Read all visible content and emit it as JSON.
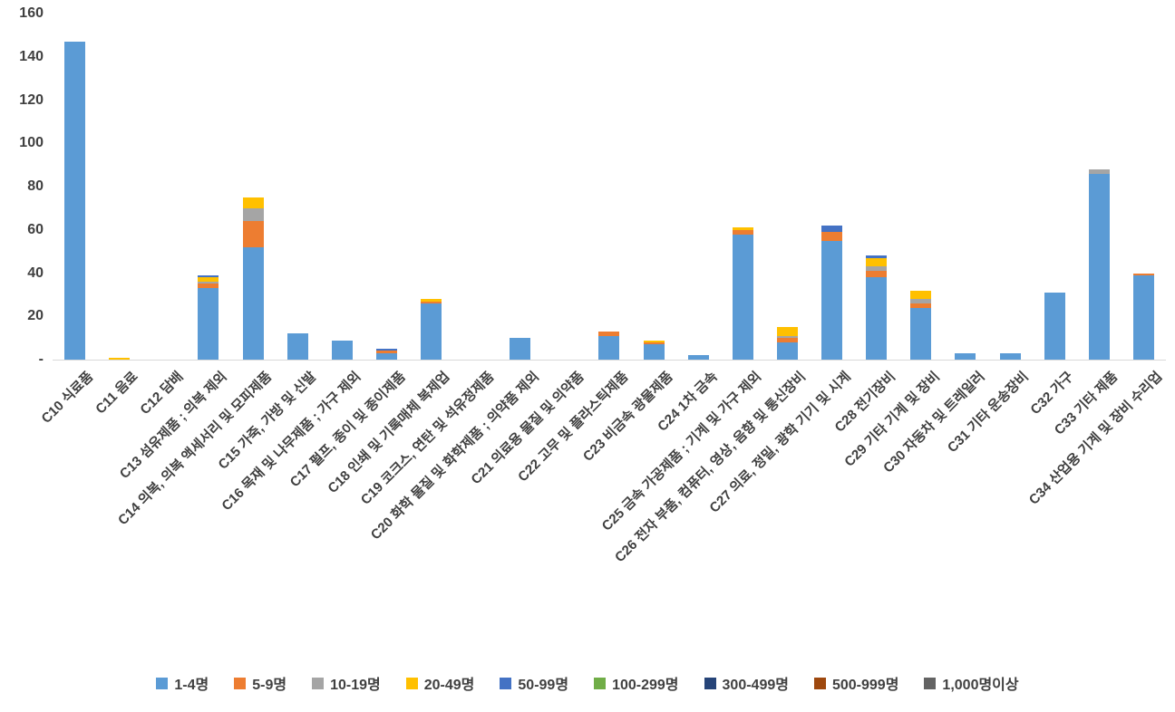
{
  "chart_data": {
    "type": "bar",
    "stacked": true,
    "title": "",
    "xlabel": "",
    "ylabel": "",
    "ylim": [
      0,
      160
    ],
    "grid": false,
    "legend_position": "bottom",
    "y_ticks": [
      {
        "value": 160,
        "label": "160"
      },
      {
        "value": 140,
        "label": "140"
      },
      {
        "value": 120,
        "label": "120"
      },
      {
        "value": 100,
        "label": "100"
      },
      {
        "value": 80,
        "label": "80"
      },
      {
        "value": 60,
        "label": "60"
      },
      {
        "value": 40,
        "label": "40"
      },
      {
        "value": 20,
        "label": "20"
      },
      {
        "value": 0,
        "label": "-"
      }
    ],
    "categories": [
      "C10 식료품",
      "C11 음료",
      "C12 담배",
      "C13 섬유제품 ; 의복 제외",
      "C14 의복, 의복 액세서리 및 모피제품",
      "C15 가죽, 가방 및 신발",
      "C16 목재 및 나무제품 ; 가구 제외",
      "C17 펄프, 종이 및 종이제품",
      "C18 인쇄 및 기록매체 복제업",
      "C19 코크스, 연탄 및 석유정제품",
      "C20 화학 물질 및 화학제품 ; 의약품 제외",
      "C21 의료용 물질 및 의약품",
      "C22 고무 및 플라스틱제품",
      "C23 비금속 광물제품",
      "C24 1차 금속",
      "C25 금속 가공제품 ; 기계 및 가구 제외",
      "C26 전자 부품, 컴퓨터, 영상, 음향 및 통신장비",
      "C27 의료, 정밀, 광학 기기 및 시계",
      "C28 전기장비",
      "C29 기타 기계 및 장비",
      "C30 자동차 및 트레일러",
      "C31 기타 운송장비",
      "C32 가구",
      "C33 기타 제품",
      "C34 산업용 기계 및 장비 수리업"
    ],
    "series": [
      {
        "name": "1-4명",
        "color": "#5B9BD5",
        "values": [
          147,
          0,
          0,
          33,
          52,
          12,
          9,
          3,
          26,
          0,
          10,
          0,
          11,
          7,
          2,
          58,
          8,
          55,
          38,
          24,
          3,
          3,
          31,
          86,
          39
        ]
      },
      {
        "name": "5-9명",
        "color": "#ED7D31",
        "values": [
          0,
          0,
          0,
          2,
          12,
          0,
          0,
          1,
          1,
          0,
          0,
          0,
          2,
          1,
          0,
          2,
          2,
          4,
          3,
          2,
          0,
          0,
          0,
          0,
          1
        ]
      },
      {
        "name": "10-19명",
        "color": "#A5A5A5",
        "values": [
          0,
          0,
          0,
          1,
          6,
          0,
          0,
          0,
          0,
          0,
          0,
          0,
          0,
          0,
          0,
          0,
          1,
          0,
          2,
          2,
          0,
          0,
          0,
          2,
          0
        ]
      },
      {
        "name": "20-49명",
        "color": "#FFC000",
        "values": [
          0,
          1,
          0,
          2,
          5,
          0,
          0,
          0,
          1,
          0,
          0,
          0,
          0,
          1,
          0,
          1,
          4,
          0,
          4,
          4,
          0,
          0,
          0,
          0,
          0
        ]
      },
      {
        "name": "50-99명",
        "color": "#4472C4",
        "values": [
          0,
          0,
          0,
          1,
          0,
          0,
          0,
          1,
          0,
          0,
          0,
          0,
          0,
          0,
          0,
          0,
          0,
          3,
          1,
          0,
          0,
          0,
          0,
          0,
          0
        ]
      },
      {
        "name": "100-299명",
        "color": "#70AD47",
        "values": [
          0,
          0,
          0,
          0,
          0,
          0,
          0,
          0,
          0,
          0,
          0,
          0,
          0,
          0,
          0,
          0,
          0,
          0,
          0,
          0,
          0,
          0,
          0,
          0,
          0
        ]
      },
      {
        "name": "300-499명",
        "color": "#264478",
        "values": [
          0,
          0,
          0,
          0,
          0,
          0,
          0,
          0,
          0,
          0,
          0,
          0,
          0,
          0,
          0,
          0,
          0,
          0,
          0,
          0,
          0,
          0,
          0,
          0,
          0
        ]
      },
      {
        "name": "500-999명",
        "color": "#9E480E",
        "values": [
          0,
          0,
          0,
          0,
          0,
          0,
          0,
          0,
          0,
          0,
          0,
          0,
          0,
          0,
          0,
          0,
          0,
          0,
          0,
          0,
          0,
          0,
          0,
          0,
          0
        ]
      },
      {
        "name": "1,000명이상",
        "color": "#636363",
        "values": [
          0,
          0,
          0,
          0,
          0,
          0,
          0,
          0,
          0,
          0,
          0,
          0,
          0,
          0,
          0,
          0,
          0,
          0,
          0,
          0,
          0,
          0,
          0,
          0,
          0
        ]
      }
    ]
  }
}
